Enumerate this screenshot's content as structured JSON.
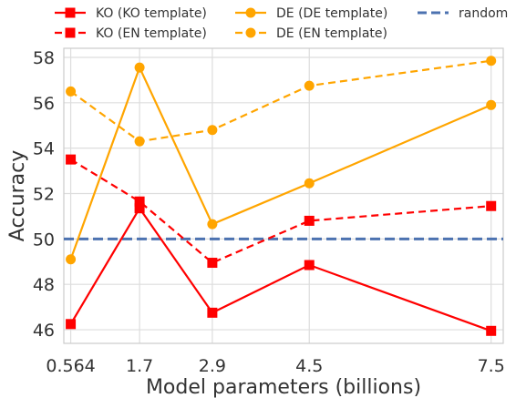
{
  "chart_data": {
    "type": "line",
    "xlabel": "Model parameters (billions)",
    "ylabel": "Accuracy",
    "x": [
      0.564,
      1.7,
      2.9,
      4.5,
      7.5
    ],
    "x_tick_labels": [
      "0.564",
      "1.7",
      "2.9",
      "4.5",
      "7.5"
    ],
    "xlim": [
      0.45,
      7.7
    ],
    "ylim": [
      45.4,
      58.4
    ],
    "y_ticks": [
      46,
      48,
      50,
      52,
      54,
      56,
      58
    ],
    "grid": true,
    "legend_position": "top",
    "series": [
      {
        "name": "KO (KO template)",
        "color": "#ff0000",
        "marker": "square",
        "dash": "solid",
        "values": [
          46.25,
          51.35,
          46.75,
          48.85,
          45.95
        ]
      },
      {
        "name": "KO (EN template)",
        "color": "#ff0000",
        "marker": "square",
        "dash": "dashed",
        "values": [
          53.5,
          51.65,
          48.95,
          50.8,
          51.45
        ]
      },
      {
        "name": "DE (DE template)",
        "color": "#ffa500",
        "marker": "circle",
        "dash": "solid",
        "values": [
          49.1,
          57.55,
          50.65,
          52.45,
          55.9
        ]
      },
      {
        "name": "DE (EN template)",
        "color": "#ffa500",
        "marker": "circle",
        "dash": "dashed",
        "values": [
          56.5,
          54.3,
          54.8,
          56.75,
          57.85
        ]
      }
    ],
    "reference_line": {
      "name": "random",
      "value": 50,
      "color": "#4c72b0",
      "dash": "dashed"
    }
  }
}
